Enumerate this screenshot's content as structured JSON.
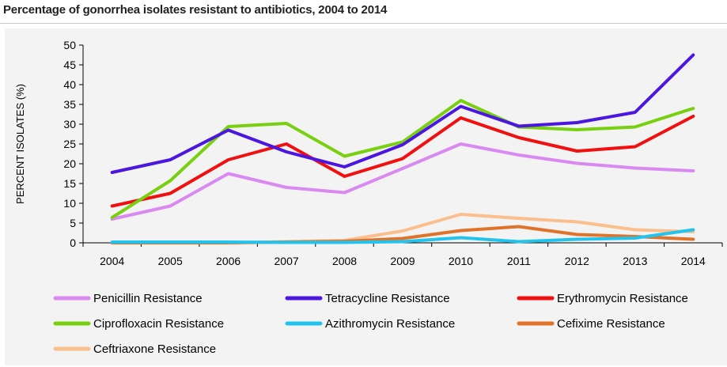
{
  "title": "Percentage of gonorrhea isolates resistant to antibiotics, 2004 to 2014",
  "chart_data": {
    "type": "line",
    "title": "",
    "xlabel": "",
    "ylabel": "PERCENT ISOLATES (%)",
    "x": [
      "2004",
      "2005",
      "2006",
      "2007",
      "2008",
      "2009",
      "2010",
      "2011",
      "2012",
      "2013",
      "2014"
    ],
    "ylim": [
      0,
      50
    ],
    "yticks": [
      0,
      5,
      10,
      15,
      20,
      25,
      30,
      35,
      40,
      45,
      50
    ],
    "grid": false,
    "legend_position": "bottom",
    "series": [
      {
        "name": "Penicillin Resistance",
        "color": "#d98af0",
        "values": [
          6.0,
          9.3,
          17.5,
          14.0,
          12.7,
          18.8,
          25.0,
          22.2,
          20.1,
          18.9,
          18.2
        ]
      },
      {
        "name": "Tetracycline Resistance",
        "color": "#4b16e0",
        "values": [
          17.8,
          21.0,
          28.5,
          23.0,
          19.2,
          24.8,
          34.5,
          29.5,
          30.4,
          33.0,
          47.5
        ]
      },
      {
        "name": "Erythromycin Resistance",
        "color": "#f01010",
        "values": [
          9.3,
          12.5,
          21.0,
          25.0,
          16.8,
          21.3,
          31.6,
          26.6,
          23.2,
          24.3,
          32.0
        ]
      },
      {
        "name": "Ciprofloxacin Resistance",
        "color": "#78d010",
        "values": [
          6.4,
          15.7,
          29.4,
          30.2,
          21.9,
          25.5,
          36.0,
          29.3,
          28.6,
          29.3,
          34.0
        ]
      },
      {
        "name": "Azithromycin Resistance",
        "color": "#22c4ee",
        "values": [
          0.2,
          0.2,
          0.2,
          0.1,
          0.1,
          0.3,
          1.3,
          0.3,
          0.9,
          1.2,
          3.3
        ]
      },
      {
        "name": "Cefixime Resistance",
        "color": "#e0732a",
        "values": [
          0.0,
          0.0,
          0.0,
          0.2,
          0.4,
          1.1,
          3.1,
          4.1,
          2.1,
          1.6,
          0.9
        ]
      },
      {
        "name": "Ceftriaxone Resistance",
        "color": "#fbbf8e",
        "values": [
          0.0,
          0.0,
          0.0,
          0.3,
          0.6,
          3.0,
          7.2,
          6.2,
          5.3,
          3.3,
          2.8
        ]
      }
    ]
  }
}
